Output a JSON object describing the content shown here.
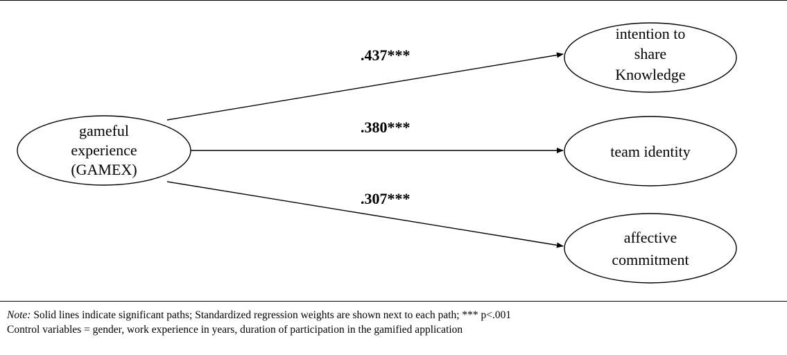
{
  "nodes": {
    "gamex": {
      "lines": [
        "gameful",
        "experience",
        "(GAMEX)"
      ]
    },
    "intention": {
      "lines": [
        "intention to",
        "share",
        "Knowledge"
      ]
    },
    "team": {
      "lines": [
        "team identity"
      ]
    },
    "affective": {
      "lines": [
        "affective",
        "commitment"
      ]
    }
  },
  "paths": [
    {
      "from": "gamex",
      "to": "intention",
      "label": ".437***"
    },
    {
      "from": "gamex",
      "to": "team",
      "label": ".380***"
    },
    {
      "from": "gamex",
      "to": "affective",
      "label": ".307***"
    }
  ],
  "note": {
    "prefix": "Note:",
    "line1": " Solid lines indicate significant paths; Standardized regression weights are shown next to each path; *** p<.001",
    "line2": "Control variables = gender, work experience in years, duration of participation in the gamified application"
  }
}
